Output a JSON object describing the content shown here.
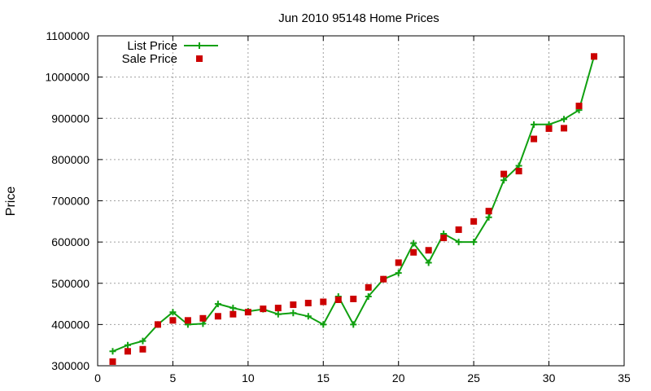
{
  "chart_data": {
    "type": "line",
    "title": "Jun 2010 95148 Home Prices",
    "xlabel": "",
    "ylabel": "Price",
    "xlim": [
      0,
      35
    ],
    "ylim": [
      300000,
      1100000
    ],
    "x_ticks": [
      0,
      5,
      10,
      15,
      20,
      25,
      30,
      35
    ],
    "y_ticks": [
      300000,
      400000,
      500000,
      600000,
      700000,
      800000,
      900000,
      1000000,
      1100000
    ],
    "grid": true,
    "legend_position": "top-left",
    "series": [
      {
        "name": "List Price",
        "style": "line+plus",
        "color": "#10a010",
        "x": [
          1,
          2,
          3,
          4,
          5,
          6,
          7,
          8,
          9,
          10,
          11,
          12,
          13,
          14,
          15,
          16,
          17,
          18,
          19,
          20,
          21,
          22,
          23,
          24,
          25,
          26,
          27,
          28,
          29,
          30,
          31,
          32,
          33
        ],
        "values": [
          335000,
          350000,
          360000,
          400000,
          430000,
          400000,
          402000,
          450000,
          440000,
          432000,
          437000,
          425000,
          428000,
          420000,
          400000,
          468000,
          400000,
          468000,
          510000,
          525000,
          597000,
          550000,
          620000,
          600000,
          600000,
          660000,
          750000,
          785000,
          885000,
          885000,
          898000,
          920000,
          1050000
        ]
      },
      {
        "name": "Sale Price",
        "style": "square",
        "color": "#cc0000",
        "x": [
          1,
          2,
          3,
          4,
          5,
          6,
          7,
          8,
          9,
          10,
          11,
          12,
          13,
          14,
          15,
          16,
          17,
          18,
          19,
          20,
          21,
          22,
          23,
          24,
          25,
          26,
          27,
          28,
          29,
          30,
          31,
          32,
          33
        ],
        "values": [
          310000,
          335000,
          340000,
          400000,
          410000,
          410000,
          415000,
          420000,
          425000,
          430000,
          438000,
          440000,
          448000,
          452000,
          455000,
          460000,
          462000,
          490000,
          510000,
          550000,
          575000,
          580000,
          610000,
          630000,
          650000,
          675000,
          765000,
          772000,
          850000,
          875000,
          876000,
          930000,
          1050000
        ]
      }
    ]
  }
}
